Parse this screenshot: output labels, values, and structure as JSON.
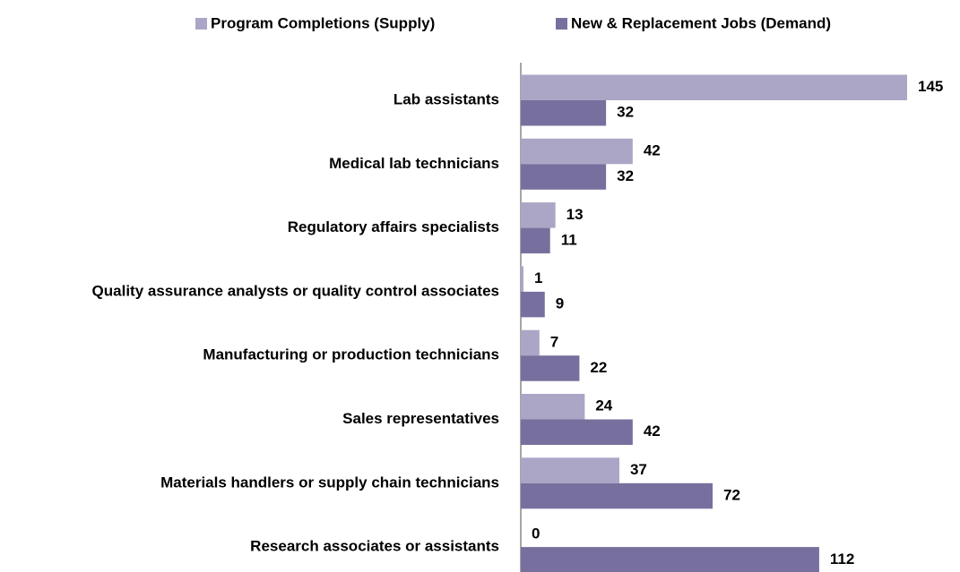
{
  "chart_data": {
    "type": "hbar",
    "categories": [
      "Lab assistants",
      "Medical lab technicians",
      "Regulatory affairs specialists",
      "Quality assurance analysts or quality control associates",
      "Manufacturing or production technicians",
      "Sales representatives",
      "Materials handlers or supply chain technicians",
      "Research associates or assistants"
    ],
    "series": [
      {
        "name": "Program Completions (Supply)",
        "color": "#aba6c6",
        "values": [
          145,
          42,
          13,
          1,
          7,
          24,
          37,
          0
        ]
      },
      {
        "name": "New & Replacement Jobs (Demand)",
        "color": "#77709e",
        "values": [
          32,
          32,
          11,
          9,
          22,
          42,
          72,
          112
        ]
      }
    ],
    "xlim": [
      0,
      145
    ],
    "legend": "top"
  }
}
